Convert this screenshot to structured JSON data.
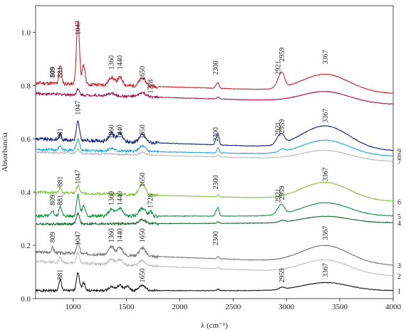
{
  "chart_data": {
    "type": "line",
    "title": "",
    "xlabel": "λ (cm⁻¹)",
    "ylabel": "Absorbancia",
    "xlim": [
      650,
      4000
    ],
    "ylim": [
      0.0,
      1.1
    ],
    "x_ticks": [
      {
        "value": 1000,
        "label": "1000"
      },
      {
        "value": 1500,
        "label": "1500"
      },
      {
        "value": 2000,
        "label": "2000"
      },
      {
        "value": 2500,
        "label": "2500"
      },
      {
        "value": 3000,
        "label": "3000"
      },
      {
        "value": 3500,
        "label": "3500"
      },
      {
        "value": 4000,
        "label": "4000"
      }
    ],
    "y_ticks": [
      {
        "value": 0.0,
        "label": "0.0"
      },
      {
        "value": 0.2,
        "label": "0.2"
      },
      {
        "value": 0.4,
        "label": "0.4"
      },
      {
        "value": 0.6,
        "label": "0.6"
      },
      {
        "value": 0.8,
        "label": "0.8"
      },
      {
        "value": 1.0,
        "label": "1.0"
      }
    ],
    "grid": false,
    "legend": "none",
    "series": [
      {
        "name": "1",
        "color": "#1a1a1a",
        "base": 0.03,
        "end": 0.03,
        "scale": 0.7,
        "broad": 0.03,
        "seed": 1,
        "peaks": [
          [
            881,
            0.04,
            12
          ],
          [
            1047,
            0.07,
            14
          ],
          [
            1100,
            0.03,
            14
          ],
          [
            1360,
            0.015,
            25
          ],
          [
            1440,
            0.02,
            25
          ],
          [
            1510,
            0.015,
            20
          ],
          [
            1650,
            0.02,
            30
          ],
          [
            2360,
            0.006,
            10
          ],
          [
            2959,
            0.008,
            25
          ]
        ]
      },
      {
        "name": "2",
        "color": "#c0c0c0",
        "base": 0.14,
        "end": 0.085,
        "scale": 0.8,
        "broad": 0.05,
        "seed": 2,
        "peaks": [
          [
            881,
            0.02,
            12
          ],
          [
            1047,
            0.04,
            14
          ],
          [
            1360,
            0.02,
            25
          ],
          [
            1440,
            0.02,
            25
          ],
          [
            1650,
            0.02,
            30
          ],
          [
            2360,
            0.006,
            10
          ]
        ]
      },
      {
        "name": "3",
        "color": "#7a7a7a",
        "base": 0.175,
        "end": 0.125,
        "scale": 0.9,
        "broad": 0.065,
        "seed": 3,
        "peaks": [
          [
            809,
            0.02,
            12
          ],
          [
            1047,
            0.04,
            14
          ],
          [
            1360,
            0.03,
            25
          ],
          [
            1440,
            0.03,
            25
          ],
          [
            1650,
            0.03,
            30
          ],
          [
            2360,
            0.008,
            10
          ]
        ]
      },
      {
        "name": "4",
        "color": "#1e6b3a",
        "base": 0.28,
        "end": 0.285,
        "scale": 0.7,
        "broad": 0.025,
        "seed": 4,
        "peaks": [
          [
            1047,
            0.04,
            14
          ],
          [
            1650,
            0.015,
            30
          ],
          [
            2360,
            0.006,
            10
          ],
          [
            2959,
            0.006,
            25
          ]
        ]
      },
      {
        "name": "5",
        "color": "#17944a",
        "base": 0.31,
        "end": 0.31,
        "scale": 1.0,
        "broad": 0.05,
        "seed": 5,
        "peaks": [
          [
            809,
            0.02,
            12
          ],
          [
            881,
            0.04,
            12
          ],
          [
            1047,
            0.08,
            14
          ],
          [
            1100,
            0.04,
            14
          ],
          [
            1360,
            0.025,
            25
          ],
          [
            1440,
            0.03,
            25
          ],
          [
            1650,
            0.03,
            30
          ],
          [
            1728,
            0.015,
            15
          ],
          [
            2340,
            0.015,
            10
          ],
          [
            2360,
            0.03,
            10
          ],
          [
            2921,
            0.015,
            25
          ],
          [
            2959,
            0.03,
            25
          ]
        ]
      },
      {
        "name": "6",
        "color": "#8bc34a",
        "base": 0.4,
        "end": 0.365,
        "scale": 0.8,
        "broad": 0.065,
        "seed": 6,
        "peaks": [
          [
            881,
            0.02,
            12
          ],
          [
            1047,
            0.03,
            14
          ],
          [
            1650,
            0.04,
            30
          ],
          [
            2360,
            0.008,
            10
          ]
        ]
      },
      {
        "name": "7",
        "color": "#bdbdbd",
        "base": 0.55,
        "end": 0.515,
        "scale": 0.6,
        "broad": 0.035,
        "seed": 7,
        "peaks": [
          [
            1047,
            0.015,
            14
          ],
          [
            1650,
            0.01,
            30
          ],
          [
            2360,
            0.008,
            10
          ]
        ]
      },
      {
        "name": "8",
        "color": "#29a8d6",
        "base": 0.56,
        "end": 0.535,
        "scale": 0.8,
        "broad": 0.055,
        "seed": 8,
        "peaks": [
          [
            881,
            0.015,
            12
          ],
          [
            1047,
            0.04,
            14
          ],
          [
            1360,
            0.01,
            25
          ],
          [
            1650,
            0.02,
            30
          ],
          [
            2360,
            0.02,
            10
          ],
          [
            2959,
            0.01,
            25
          ]
        ]
      },
      {
        "name": "9",
        "color": "#1a2a7a",
        "base": 0.6,
        "end": 0.555,
        "scale": 1.0,
        "broad": 0.085,
        "seed": 9,
        "peaks": [
          [
            881,
            0.02,
            12
          ],
          [
            1047,
            0.07,
            14
          ],
          [
            1360,
            0.03,
            25
          ],
          [
            1440,
            0.03,
            25
          ],
          [
            1650,
            0.03,
            30
          ],
          [
            2340,
            0.02,
            10
          ],
          [
            2360,
            0.04,
            10
          ],
          [
            2921,
            0.02,
            25
          ],
          [
            2959,
            0.03,
            25
          ]
        ]
      },
      {
        "name": "",
        "color": "#9c1a4e",
        "base": 0.77,
        "end": 0.73,
        "scale": 0.8,
        "broad": 0.04,
        "seed": 10,
        "peaks": [
          [
            1047,
            0.02,
            14
          ],
          [
            1360,
            0.01,
            25
          ],
          [
            1650,
            0.015,
            30
          ],
          [
            2360,
            0.008,
            10
          ]
        ]
      },
      {
        "name": "",
        "color": "#c62832",
        "base": 0.81,
        "end": 0.77,
        "scale": 1.1,
        "broad": 0.065,
        "seed": 11,
        "peaks": [
          [
            881,
            0.07,
            12
          ],
          [
            1047,
            0.24,
            14
          ],
          [
            1100,
            0.07,
            14
          ],
          [
            1360,
            0.03,
            25
          ],
          [
            1440,
            0.03,
            25
          ],
          [
            1650,
            0.03,
            30
          ],
          [
            2340,
            0.01,
            10
          ],
          [
            2360,
            0.02,
            10
          ],
          [
            2921,
            0.02,
            25
          ],
          [
            2959,
            0.05,
            25
          ]
        ]
      }
    ],
    "annotations": [
      {
        "text": "809",
        "x": 809,
        "y": 0.83,
        "bold": true
      },
      {
        "text": "881",
        "x": 881,
        "y": 0.83
      },
      {
        "text": "1047",
        "x": 1047,
        "y": 0.99
      },
      {
        "text": "1360",
        "x": 1360,
        "y": 0.86
      },
      {
        "text": "1440",
        "x": 1440,
        "y": 0.86
      },
      {
        "text": "1650",
        "x": 1650,
        "y": 0.82
      },
      {
        "text": "1728",
        "x": 1728,
        "y": 0.77
      },
      {
        "text": "2300",
        "x": 2340,
        "y": 0.84
      },
      {
        "text": "2921",
        "x": 2921,
        "y": 0.84
      },
      {
        "text": "2959",
        "x": 2959,
        "y": 0.89
      },
      {
        "text": "3367",
        "x": 3367,
        "y": 0.88
      },
      {
        "text": "881",
        "x": 881,
        "y": 0.6
      },
      {
        "text": "1047",
        "x": 1047,
        "y": 0.69
      },
      {
        "text": "1360",
        "x": 1360,
        "y": 0.6
      },
      {
        "text": "1440",
        "x": 1440,
        "y": 0.6
      },
      {
        "text": "1650",
        "x": 1650,
        "y": 0.6
      },
      {
        "text": "2300",
        "x": 2340,
        "y": 0.59
      },
      {
        "text": "2921",
        "x": 2921,
        "y": 0.61
      },
      {
        "text": "2959",
        "x": 2959,
        "y": 0.62
      },
      {
        "text": "3367",
        "x": 3367,
        "y": 0.66
      },
      {
        "text": "881",
        "x": 881,
        "y": 0.42
      },
      {
        "text": "1047",
        "x": 1047,
        "y": 0.43
      },
      {
        "text": "1650",
        "x": 1650,
        "y": 0.42
      },
      {
        "text": "2300",
        "x": 2340,
        "y": 0.41
      },
      {
        "text": "3367",
        "x": 3367,
        "y": 0.44
      },
      {
        "text": "809",
        "x": 809,
        "y": 0.35
      },
      {
        "text": "881",
        "x": 881,
        "y": 0.35
      },
      {
        "text": "1360",
        "x": 1360,
        "y": 0.35
      },
      {
        "text": "1440",
        "x": 1440,
        "y": 0.35
      },
      {
        "text": "1728",
        "x": 1728,
        "y": 0.34
      },
      {
        "text": "2921",
        "x": 2921,
        "y": 0.36
      },
      {
        "text": "2959",
        "x": 2959,
        "y": 0.37
      },
      {
        "text": "809",
        "x": 809,
        "y": 0.21
      },
      {
        "text": "1047",
        "x": 1047,
        "y": 0.2
      },
      {
        "text": "1360",
        "x": 1360,
        "y": 0.21
      },
      {
        "text": "1440",
        "x": 1440,
        "y": 0.21
      },
      {
        "text": "1650",
        "x": 1650,
        "y": 0.21
      },
      {
        "text": "2300",
        "x": 2340,
        "y": 0.2
      },
      {
        "text": "3367",
        "x": 3367,
        "y": 0.22
      },
      {
        "text": "881",
        "x": 881,
        "y": 0.07
      },
      {
        "text": "1650",
        "x": 1650,
        "y": 0.06
      },
      {
        "text": "2959",
        "x": 2959,
        "y": 0.06
      },
      {
        "text": "3367",
        "x": 3367,
        "y": 0.08
      }
    ],
    "trace_numbers": [
      {
        "text": "1",
        "y": 0.03
      },
      {
        "text": "2",
        "y": 0.085
      },
      {
        "text": "3",
        "y": 0.125
      },
      {
        "text": "4",
        "y": 0.285
      },
      {
        "text": "5",
        "y": 0.31
      },
      {
        "text": "6",
        "y": 0.365
      },
      {
        "text": "7",
        "y": 0.515
      },
      {
        "text": "8",
        "y": 0.535
      },
      {
        "text": "9",
        "y": 0.555
      }
    ]
  }
}
